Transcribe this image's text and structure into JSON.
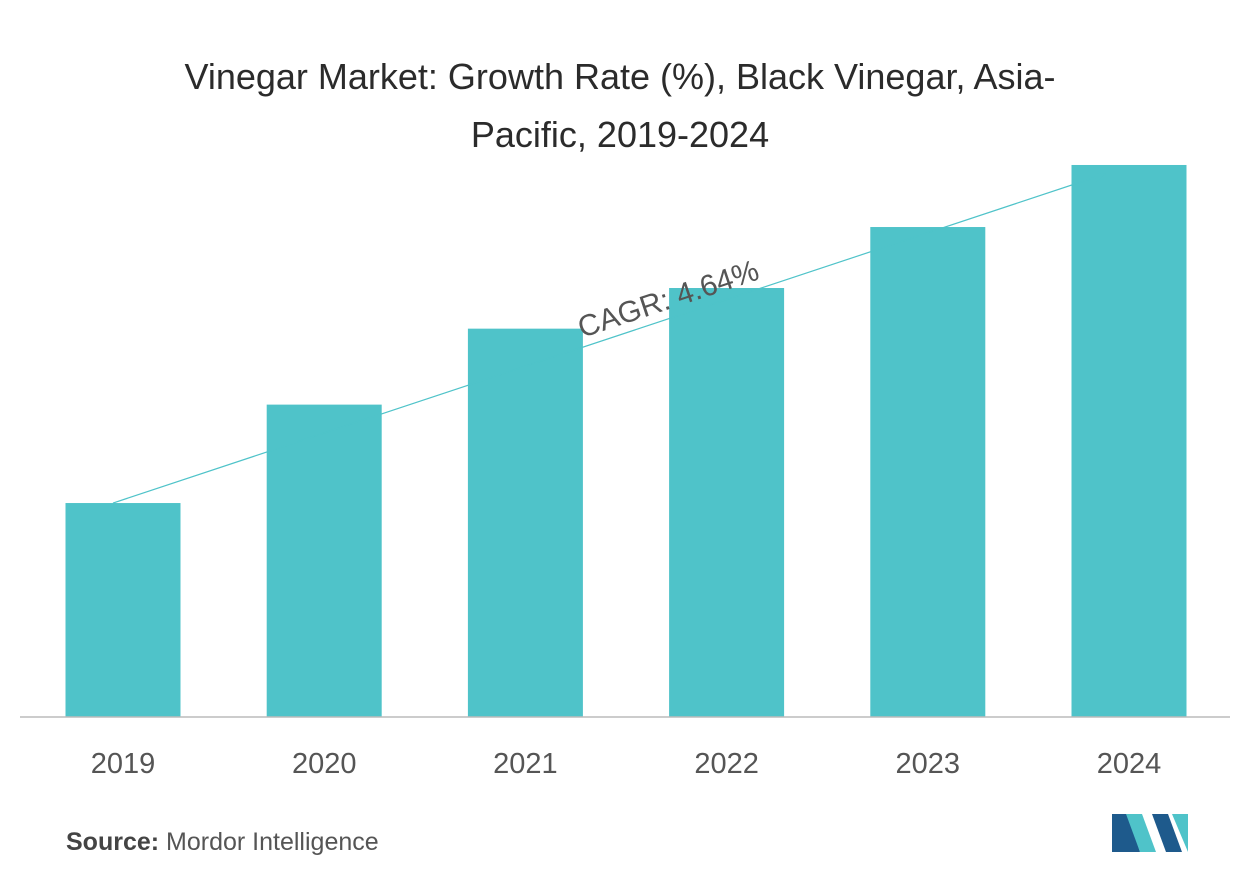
{
  "chart_data": {
    "type": "bar",
    "title_lines": [
      "Vinegar Market: Growth Rate (%), Black Vinegar, Asia-",
      "Pacific, 2019-2024"
    ],
    "categories": [
      "2019",
      "2020",
      "2021",
      "2022",
      "2023",
      "2024"
    ],
    "values": [
      2.0,
      2.92,
      3.63,
      4.01,
      4.58,
      5.16
    ],
    "ylim": [
      0,
      5.3
    ],
    "xlabel": "",
    "ylabel": "",
    "grid": false,
    "annotation": {
      "text": "CAGR: 4.64%"
    },
    "colors": {
      "bar": "#4fc3c9",
      "axis": "#bbbbbb",
      "trend": "#4fc3c9",
      "text": "#555555"
    }
  },
  "source": {
    "label": "Source:",
    "text": " Mordor Intelligence"
  },
  "logo": {
    "name": "mordor-intelligence-logo",
    "colors": [
      "#1e5a8c",
      "#4fc3c9"
    ]
  }
}
